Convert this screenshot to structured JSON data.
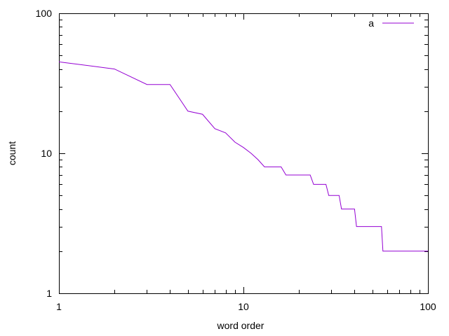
{
  "chart_data": {
    "type": "line",
    "xlabel": "word order",
    "ylabel": "count",
    "xscale": "log",
    "yscale": "log",
    "xlim": [
      1,
      100
    ],
    "ylim": [
      1,
      100
    ],
    "xticks": [
      {
        "value": 1,
        "label": "1"
      },
      {
        "value": 10,
        "label": "10"
      },
      {
        "value": 100,
        "label": "100"
      }
    ],
    "yticks": [
      {
        "value": 1,
        "label": "1"
      },
      {
        "value": 10,
        "label": "10"
      },
      {
        "value": 100,
        "label": "100"
      }
    ],
    "grid": false,
    "legend_position": "top-right",
    "series": [
      {
        "name": "a",
        "color": "#9400d3",
        "x": [
          1,
          2,
          3,
          4,
          5,
          6,
          7,
          8,
          9,
          10,
          11,
          12,
          13,
          14,
          15,
          16,
          17,
          23,
          24,
          28,
          29,
          33,
          34,
          40,
          41,
          56,
          57,
          100
        ],
        "y": [
          45,
          40,
          31,
          31,
          20,
          19,
          15,
          14,
          12,
          11,
          10,
          9,
          8,
          8,
          8,
          8,
          7,
          7,
          6,
          6,
          5,
          5,
          4,
          4,
          3,
          3,
          2,
          2
        ]
      }
    ]
  }
}
